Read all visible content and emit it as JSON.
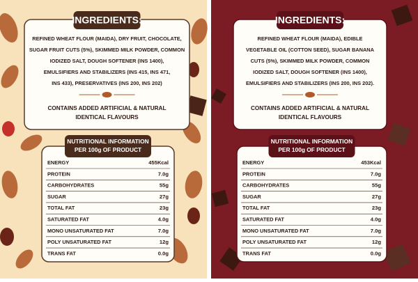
{
  "panels": [
    {
      "ingredients": {
        "title": "INGREDIENTS:",
        "lines": [
          "REFINED WHEAT FLOUR (MAIDA), DRY FRUIT, CHOCOLATE,",
          "SUGAR FRUIT CUTS (5%), SKIMMED MILK POWDER, COMMON",
          "IODIZED SALT, DOUGH SOFTENER (INS 1400),",
          "EMULSIFIERS AND STABILIZERS (INS 415, INS 471,",
          "INS 433), PRESERVATIVES (INS 200, INS 202)"
        ],
        "note_lines": [
          "CONTAINS ADDED ARTIFICIAL & NATURAL",
          "IDENTICAL FLAVOURS"
        ]
      },
      "nutrition": {
        "title_lines": [
          "NUTRITIONAL INFORMATION",
          "PER 100g OF PRODUCT"
        ],
        "rows": [
          [
            "ENERGY",
            "455Kcal"
          ],
          [
            "PROTEIN",
            "7.0g"
          ],
          [
            "CARBOHYDRATES",
            "55g"
          ],
          [
            "SUGAR",
            "27g"
          ],
          [
            "TOTAL FAT",
            "23g"
          ],
          [
            "SATURATED FAT",
            "4.0g"
          ],
          [
            "MONO UNSATURATED FAT",
            "7.0g"
          ],
          [
            "POLY UNSATURATED FAT",
            "12g"
          ],
          [
            "TRANS FAT",
            "0.0g"
          ]
        ]
      }
    },
    {
      "ingredients": {
        "title": "INGREDIENTS:",
        "lines": [
          "REFINED WHEAT FLOUR (MAIDA), EDIBLE",
          "VEGETABLE OIL (COTTON SEED), SUGAR BANANA",
          "CUTS (5%), SKIMMED MILK POWDER, COMMON",
          "IODIZED SALT, DOUGH SOFTENER (INS 1400),",
          "EMULSIFIERS AND STABILIZERS (INS 200, INS 202)."
        ],
        "note_lines": [
          "CONTAINS ADDED ARTIFICIAL & NATURAL",
          "IDENTICAL FLAVOURS"
        ]
      },
      "nutrition": {
        "title_lines": [
          "NUTRITIONAL INFORMATION",
          "PER 100g OF PRODUCT"
        ],
        "rows": [
          [
            "ENERGY",
            "453Kcal"
          ],
          [
            "PROTEIN",
            "7.0g"
          ],
          [
            "CARBOHYDRATES",
            "55g"
          ],
          [
            "SUGAR",
            "27g"
          ],
          [
            "TOTAL FAT",
            "23g"
          ],
          [
            "SATURATED FAT",
            "4.0g"
          ],
          [
            "MONO UNSATURATED FAT",
            "7.0g"
          ],
          [
            "POLY UNSATURATED FAT",
            "12g"
          ],
          [
            "TRANS FAT",
            "0.0g"
          ]
        ]
      }
    }
  ]
}
